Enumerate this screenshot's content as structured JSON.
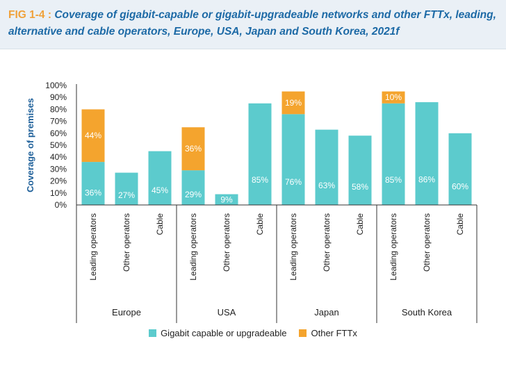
{
  "figure": {
    "label": "FIG 1-4 :",
    "title": "Coverage of gigabit-capable or gigabit-upgradeable networks and other FTTx, leading, alternative and cable operators, Europe, USA, Japan and South Korea, 2021f"
  },
  "colors": {
    "gigabit": "#5ccbcd",
    "fttx": "#f4a42e"
  },
  "chart_data": {
    "type": "bar",
    "stacked": true,
    "ylabel": "Coverage of premises",
    "ylim": [
      0,
      100
    ],
    "yticks": [
      "0%",
      "10%",
      "20%",
      "30%",
      "40%",
      "50%",
      "60%",
      "70%",
      "80%",
      "90%",
      "100%"
    ],
    "groups": [
      {
        "name": "Europe",
        "categories": [
          "Leading operators",
          "Other operators",
          "Cable"
        ]
      },
      {
        "name": "USA",
        "categories": [
          "Leading operators",
          "Other operators",
          "Cable"
        ]
      },
      {
        "name": "Japan",
        "categories": [
          "Leading operators",
          "Other operators",
          "Cable"
        ]
      },
      {
        "name": "South Korea",
        "categories": [
          "Leading operators",
          "Other operators",
          "Cable"
        ]
      }
    ],
    "series": [
      {
        "name": "Gigabit capable or upgradeable",
        "values": [
          36,
          27,
          45,
          29,
          9,
          85,
          76,
          63,
          58,
          85,
          86,
          60
        ],
        "labels": [
          "36%",
          "27%",
          "45%",
          "29%",
          "9%",
          "85%",
          "76%",
          "63%",
          "58%",
          "85%",
          "86%",
          "60%"
        ]
      },
      {
        "name": "Other FTTx",
        "values": [
          44,
          0,
          0,
          36,
          0,
          0,
          19,
          0,
          0,
          10,
          0,
          0
        ],
        "labels": [
          "44%",
          "",
          "",
          "36%",
          "",
          "",
          "19%",
          "",
          "",
          "10%",
          "",
          ""
        ]
      }
    ],
    "legend_position": "bottom-center",
    "grid": false
  }
}
